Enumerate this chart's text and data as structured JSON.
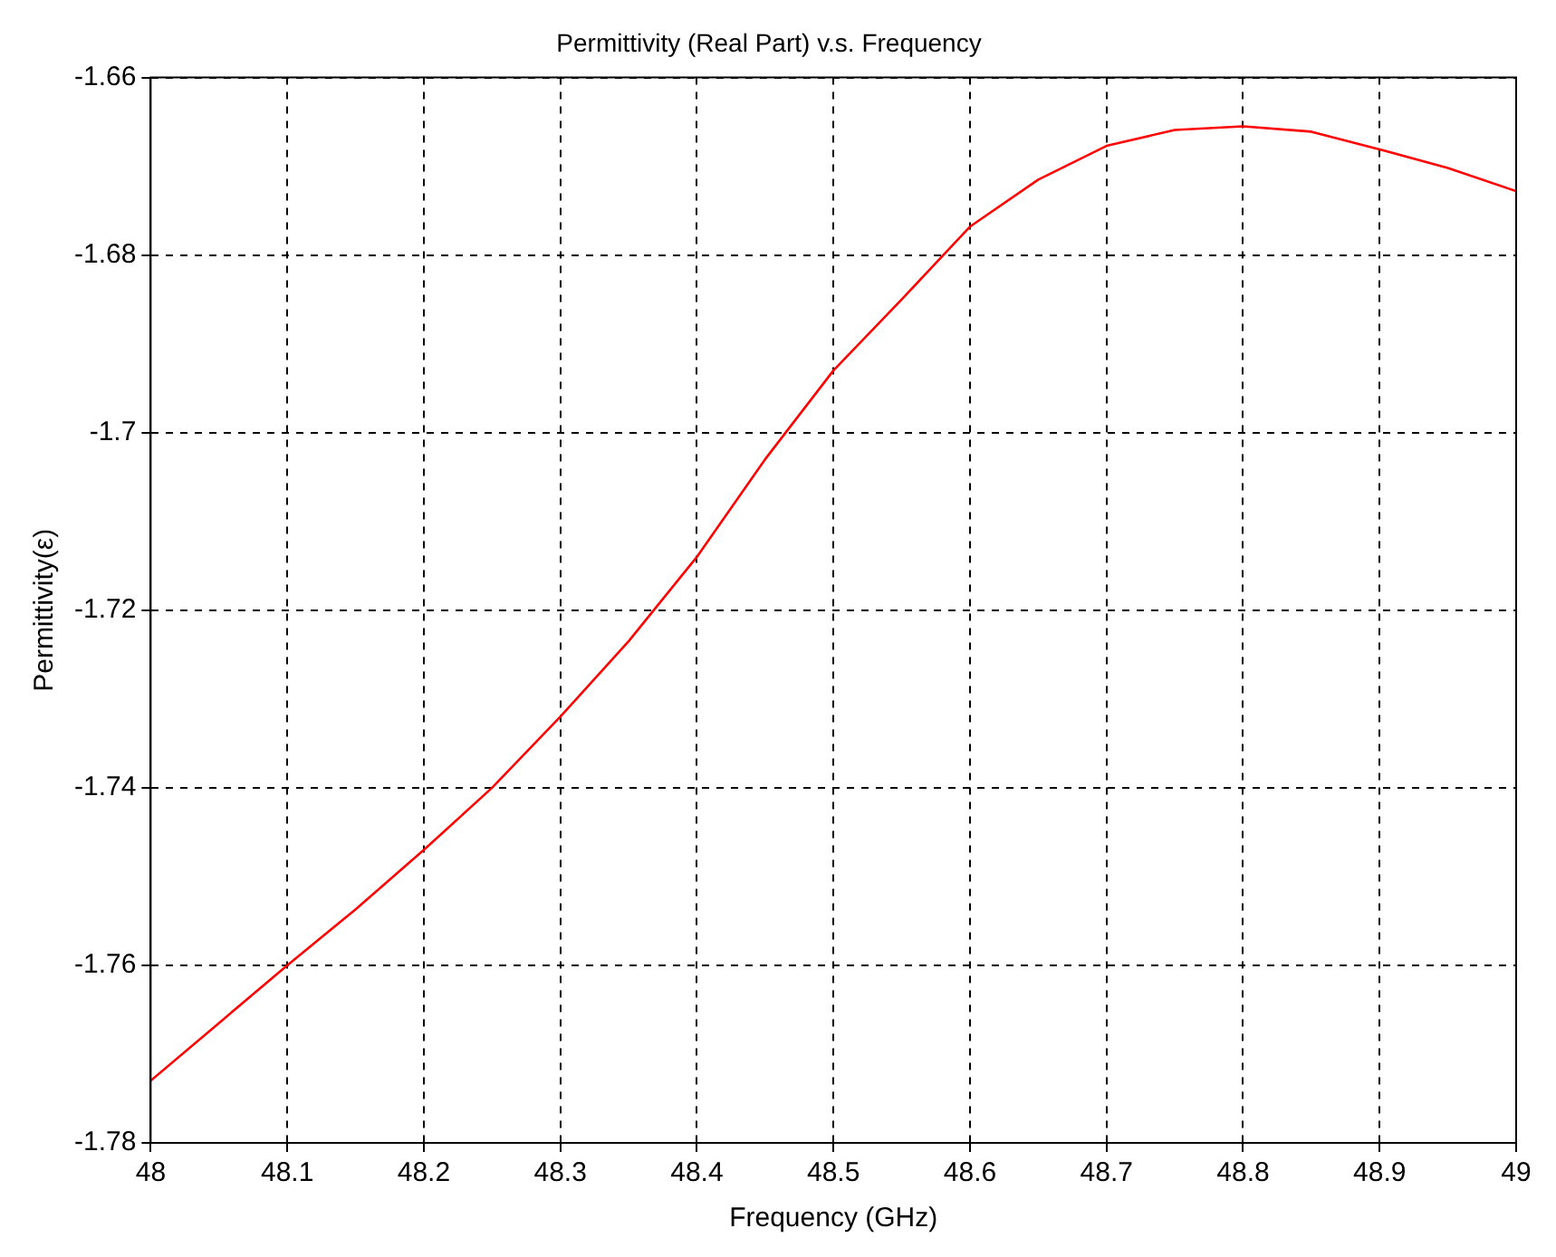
{
  "chart_data": {
    "type": "line",
    "title": "Permittivity (Real Part) v.s. Frequency",
    "xlabel": "Frequency (GHz)",
    "ylabel": "Permittivity(ε)",
    "x": [
      48,
      48.05,
      48.1,
      48.15,
      48.2,
      48.25,
      48.3,
      48.35,
      48.4,
      48.45,
      48.5,
      48.55,
      48.6,
      48.65,
      48.7,
      48.75,
      48.8,
      48.85,
      48.9,
      48.95,
      49
    ],
    "series": [
      {
        "color": "#ff0000",
        "values": [
          -1.773,
          -1.7665,
          -1.76,
          -1.7537,
          -1.747,
          -1.74,
          -1.732,
          -1.7235,
          -1.714,
          -1.703,
          -1.693,
          -1.685,
          -1.6768,
          -1.6715,
          -1.6677,
          -1.6659,
          -1.6655,
          -1.6661,
          -1.6681,
          -1.6702,
          -1.6728
        ]
      }
    ],
    "xlim": [
      48,
      49
    ],
    "xticks": [
      48,
      48.1,
      48.2,
      48.3,
      48.4,
      48.5,
      48.6,
      48.7,
      48.8,
      48.9,
      49
    ],
    "ylim": [
      -1.78,
      -1.66
    ],
    "yticks": [
      -1.78,
      -1.76,
      -1.74,
      -1.72,
      -1.7,
      -1.68,
      -1.66
    ],
    "grid": true,
    "legend": false,
    "marker": "none",
    "line_style": "solid"
  }
}
